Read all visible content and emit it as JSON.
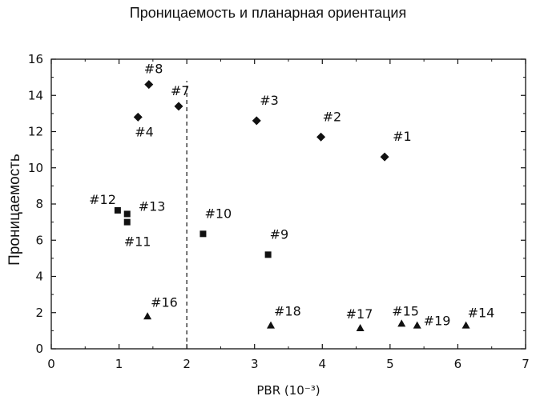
{
  "chart_data": {
    "type": "scatter",
    "title": "Проницаемость и планарная ориентация",
    "xlabel": "PBR (10⁻³)",
    "ylabel": "Проницаемость",
    "xlim": [
      0,
      7
    ],
    "ylim": [
      0,
      16
    ],
    "xticks": [
      0,
      1,
      2,
      3,
      4,
      5,
      6,
      7
    ],
    "yticks": [
      0,
      2,
      4,
      6,
      8,
      10,
      12,
      14,
      16
    ],
    "grid": false,
    "divider_x": 2.0,
    "divider_y_range": [
      0,
      14.8
    ],
    "series": [
      {
        "marker": "diamond",
        "points": [
          {
            "label": "#1",
            "x": 4.92,
            "y": 10.6
          },
          {
            "label": "#2",
            "x": 3.98,
            "y": 11.7
          },
          {
            "label": "#3",
            "x": 3.03,
            "y": 12.6
          },
          {
            "label": "#4",
            "x": 1.28,
            "y": 12.8
          },
          {
            "label": "#7",
            "x": 1.88,
            "y": 13.4
          },
          {
            "label": "#8",
            "x": 1.44,
            "y": 14.6
          }
        ]
      },
      {
        "marker": "square",
        "points": [
          {
            "label": "#9",
            "x": 3.2,
            "y": 5.2
          },
          {
            "label": "#10",
            "x": 2.24,
            "y": 6.35
          },
          {
            "label": "#11",
            "x": 1.12,
            "y": 7.0
          },
          {
            "label": "#12",
            "x": 0.98,
            "y": 7.65
          },
          {
            "label": "#13",
            "x": 1.12,
            "y": 7.45
          }
        ]
      },
      {
        "marker": "triangle",
        "points": [
          {
            "label": "#14",
            "x": 6.12,
            "y": 1.3
          },
          {
            "label": "#15",
            "x": 5.17,
            "y": 1.4
          },
          {
            "label": "#16",
            "x": 1.42,
            "y": 1.8
          },
          {
            "label": "#17",
            "x": 4.56,
            "y": 1.15
          },
          {
            "label": "#18",
            "x": 3.24,
            "y": 1.3
          },
          {
            "label": "#19",
            "x": 5.4,
            "y": 1.3
          }
        ]
      }
    ]
  }
}
